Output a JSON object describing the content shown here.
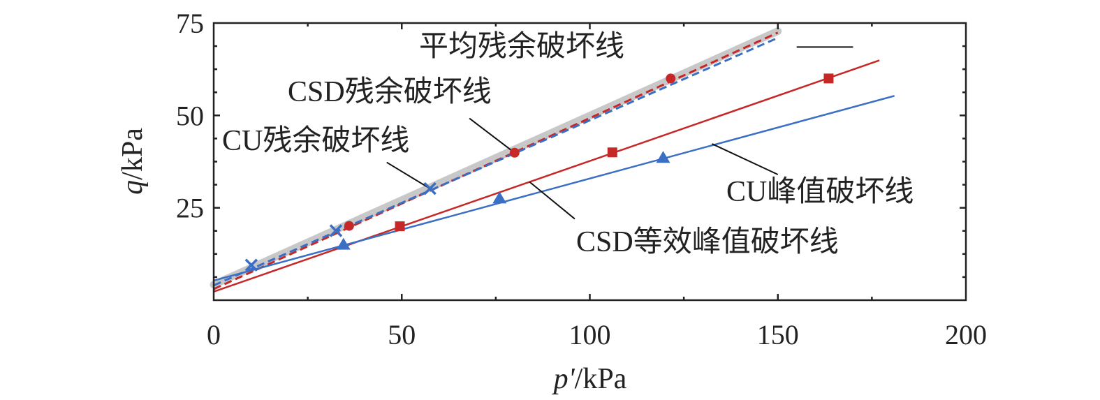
{
  "chart_data": {
    "type": "scatter",
    "xlabel_var": "p'",
    "xlabel_unit": "/kPa",
    "ylabel_var": "q",
    "ylabel_unit": "/kPa",
    "xlim": [
      0,
      200
    ],
    "ylim": [
      0,
      75
    ],
    "xticks": [
      0,
      50,
      100,
      150,
      200
    ],
    "yticks": [
      25,
      50,
      75
    ],
    "x_minor_ticks": [
      25,
      75,
      125,
      175
    ],
    "y_minor_ticks": [
      6.25,
      12.5,
      18.75,
      31.25,
      37.5,
      43.75,
      56.25,
      62.5,
      68.75
    ],
    "grid": false,
    "colors": {
      "red": "#c62828",
      "blue": "#3a6fc4",
      "gray": "#c8c8c8",
      "text": "#222222"
    },
    "lines": [
      {
        "id": "avg-residual",
        "color": "#c8c8c8",
        "style": "thick",
        "x": [
          0,
          150
        ],
        "y": [
          4.2,
          72.8
        ]
      },
      {
        "id": "csd-residual",
        "color": "#c62828",
        "style": "dashed",
        "x": [
          0,
          150
        ],
        "y": [
          3.0,
          72.4
        ]
      },
      {
        "id": "cu-residual",
        "color": "#3a6fc4",
        "style": "dashed",
        "x": [
          0,
          150
        ],
        "y": [
          4.0,
          71.0
        ]
      },
      {
        "id": "csd-peak",
        "color": "#c62828",
        "style": "solid",
        "x": [
          0,
          177
        ],
        "y": [
          2.3,
          64.9
        ]
      },
      {
        "id": "cu-peak",
        "color": "#3a6fc4",
        "style": "solid",
        "x": [
          0,
          181
        ],
        "y": [
          5.3,
          55.3
        ]
      }
    ],
    "points": [
      {
        "marker": "x",
        "color": "#3a6fc4",
        "x": [
          10,
          32.5,
          57.5
        ],
        "y": [
          9.5,
          18.8,
          30.2
        ]
      },
      {
        "marker": "circle",
        "color": "#c62828",
        "x": [
          36,
          80,
          121.5
        ],
        "y": [
          20.1,
          39.9,
          60.0
        ]
      },
      {
        "marker": "square",
        "color": "#c62828",
        "x": [
          49.5,
          106,
          163.5
        ],
        "y": [
          20.0,
          40.0,
          60.0
        ]
      },
      {
        "marker": "triangle",
        "color": "#3a6fc4",
        "x": [
          34.5,
          76,
          119.5
        ],
        "y": [
          15.0,
          27.5,
          38.5
        ]
      }
    ],
    "annotations": [
      {
        "text": "平均残余破坏线",
        "leader": [
          [
            155,
            68.5
          ],
          [
            170,
            68.5
          ]
        ]
      },
      {
        "text": "CSD残余破坏线",
        "leader": [
          [
            68,
            49.2
          ],
          [
            80,
            39.9
          ]
        ]
      },
      {
        "text": "CU残余破坏线",
        "leader": [
          [
            46,
            37.3
          ],
          [
            57.5,
            30.2
          ]
        ]
      },
      {
        "text": "CU峰值破坏线",
        "leader": [
          [
            150,
            34.0
          ],
          [
            132.5,
            42.3
          ]
        ]
      },
      {
        "text": "CSD等效峰值破坏线",
        "leader": [
          [
            96,
            22.0
          ],
          [
            84,
            32.0
          ]
        ]
      }
    ]
  }
}
